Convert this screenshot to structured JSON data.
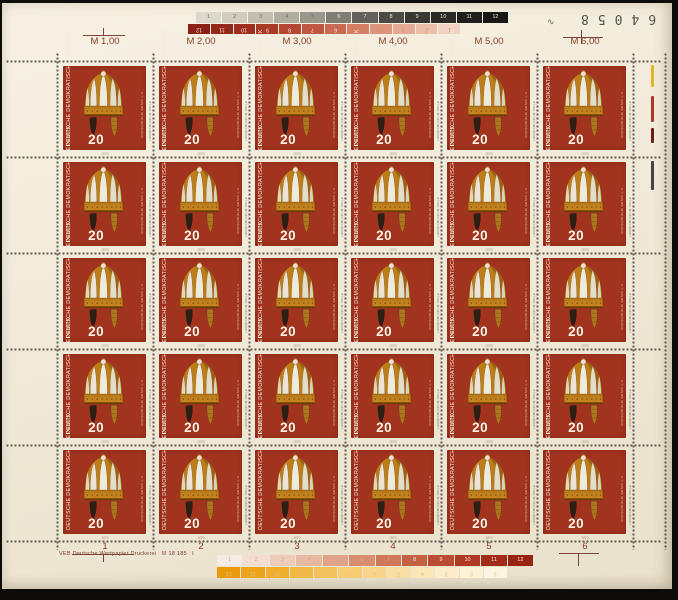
{
  "sheet": {
    "serial": "64058",
    "serial_mark": "∿",
    "imprint": "VEB Deutsche Wertpapier Druckerei   III 18 185   I",
    "top_values": [
      "M 1,00",
      "M 2,00",
      "M 3,00",
      "M 4,00",
      "M 5,00",
      "M 6,00"
    ],
    "bottom_numbers": [
      "1",
      "2",
      "3",
      "4",
      "5",
      "6"
    ]
  },
  "grid": {
    "rows": 5,
    "columns": 6,
    "total_stamps": 30
  },
  "stamp": {
    "country": "DEUTSCHE DEMOKRATISCHE REPUBLIK",
    "denomination": "20",
    "caption_line1": "SPANGENHELM UM 500 u. Z.",
    "caption_line2": "LANDESMUSEUM HALLE",
    "year": "1970"
  },
  "color_bars": {
    "top_gray": {
      "labels": [
        "1",
        "2",
        "3",
        "4",
        "5",
        "6",
        "7",
        "8",
        "9",
        "10",
        "11",
        "12"
      ],
      "colors": [
        "#dcd8ce",
        "#d0ccc2",
        "#c2beb4",
        "#b0aca2",
        "#9a978d",
        "#807d74",
        "#64615b",
        "#4c4a45",
        "#393734",
        "#2b2926",
        "#211f1d",
        "#191816"
      ],
      "number_color_on_light": "#75726a",
      "number_color_on_dark": "#e8e6e0",
      "numbers_inverted": false
    },
    "top_red": {
      "labels": [
        "12",
        "11",
        "10",
        "9",
        "8",
        "7",
        "6",
        "5",
        "4",
        "3",
        "2",
        "1"
      ],
      "colors": [
        "#8a2114",
        "#93271a",
        "#9e2f1f",
        "#a93a27",
        "#b54732",
        "#c05640",
        "#ca6951",
        "#d47e64",
        "#dd947b",
        "#e5aa93",
        "#ecbfab",
        "#f2d3c3"
      ],
      "number_color_on_light": "#c9907c",
      "number_color_on_dark": "#f4e9e2",
      "numbers_inverted": true
    },
    "bottom_red": {
      "labels": [
        "1",
        "2",
        "3",
        "4",
        "5",
        "6",
        "7",
        "8",
        "9",
        "10",
        "11",
        "12"
      ],
      "colors": [
        "#f6ebe2",
        "#f2ddd0",
        "#edccba",
        "#e7b9a2",
        "#e0a389",
        "#d88d70",
        "#cf7758",
        "#c56143",
        "#ba4c31",
        "#ae3a23",
        "#a22c19",
        "#972313"
      ],
      "number_color_on_light": "#d9a890",
      "number_color_on_dark": "#f6e8e0",
      "numbers_inverted": false
    },
    "bottom_yellow": {
      "labels": [
        "12",
        "11",
        "10",
        "9",
        "8",
        "7",
        "6",
        "5",
        "4",
        "3",
        "2",
        "1"
      ],
      "colors": [
        "#e99b0c",
        "#eca41b",
        "#efae2e",
        "#f1b845",
        "#f4c25c",
        "#f6cc74",
        "#f8d58c",
        "#f9dea4",
        "#fbe6b8",
        "#fcecc9",
        "#fdf1d6",
        "#fdf5e2"
      ],
      "number_color_on_light": "#e3c07a",
      "number_color_on_dark": "#fdf6e0",
      "numbers_inverted": true
    }
  },
  "registration_marks": [
    {
      "name": "yellow",
      "color": "#e5b623"
    },
    {
      "name": "red",
      "color": "#b03824"
    },
    {
      "name": "dark-red",
      "color": "#6f1f16"
    },
    {
      "name": "black",
      "color": "#46423c"
    }
  ],
  "colors": {
    "photo_background": "#0e0c09",
    "sheet_background": "#f0ead9",
    "stamp_red": "#a2331f",
    "helmet_gold": "#c4831d",
    "helmet_panel": "#ece7d9",
    "denomination_text": "#f7f4ea",
    "margin_text": "#8c3a28",
    "perforation_dot": "#4a443b",
    "serial_ink": "#56534d"
  }
}
